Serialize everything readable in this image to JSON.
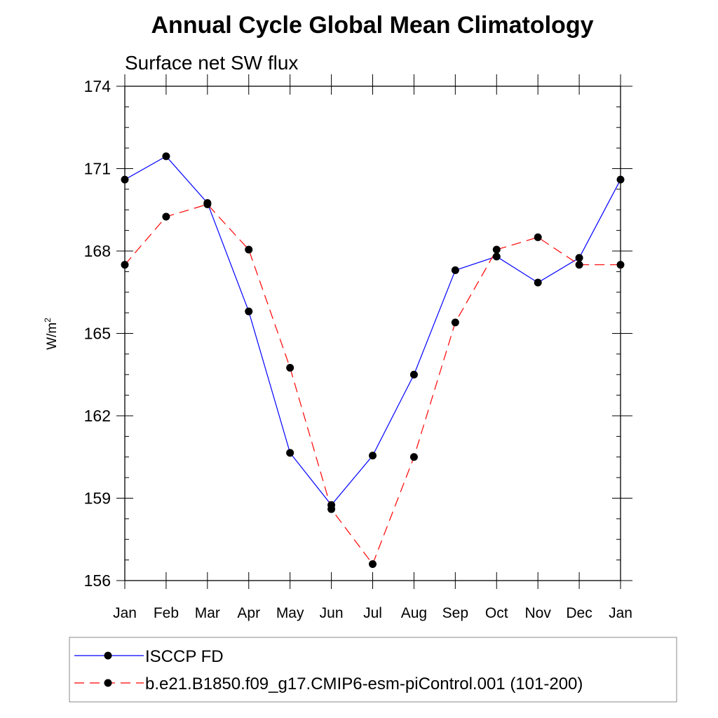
{
  "chart_data": {
    "type": "line",
    "title": "Annual Cycle Global Mean Climatology",
    "subtitle": "Surface net SW flux",
    "ylabel_base": "W/m",
    "ylabel_sup": "2",
    "xlabel": "",
    "categories": [
      "Jan",
      "Feb",
      "Mar",
      "Apr",
      "May",
      "Jun",
      "Jul",
      "Aug",
      "Sep",
      "Oct",
      "Nov",
      "Dec",
      "Jan"
    ],
    "yticks": [
      156,
      159,
      162,
      165,
      168,
      171,
      174
    ],
    "ylim": [
      156,
      174
    ],
    "series": [
      {
        "name": "ISCCP FD",
        "color": "#0000ff",
        "dash": "solid",
        "values": [
          170.6,
          171.45,
          169.75,
          165.8,
          160.65,
          158.75,
          160.55,
          163.5,
          167.3,
          167.8,
          166.85,
          167.75,
          170.6
        ]
      },
      {
        "name": "b.e21.B1850.f09_g17.CMIP6-esm-piControl.001 (101-200)",
        "color": "#ff0000",
        "dash": "dashed",
        "values": [
          167.5,
          169.25,
          169.7,
          168.05,
          163.75,
          158.6,
          156.6,
          160.5,
          165.4,
          168.05,
          168.5,
          167.5,
          167.5
        ]
      }
    ],
    "legend_position": "bottom"
  }
}
